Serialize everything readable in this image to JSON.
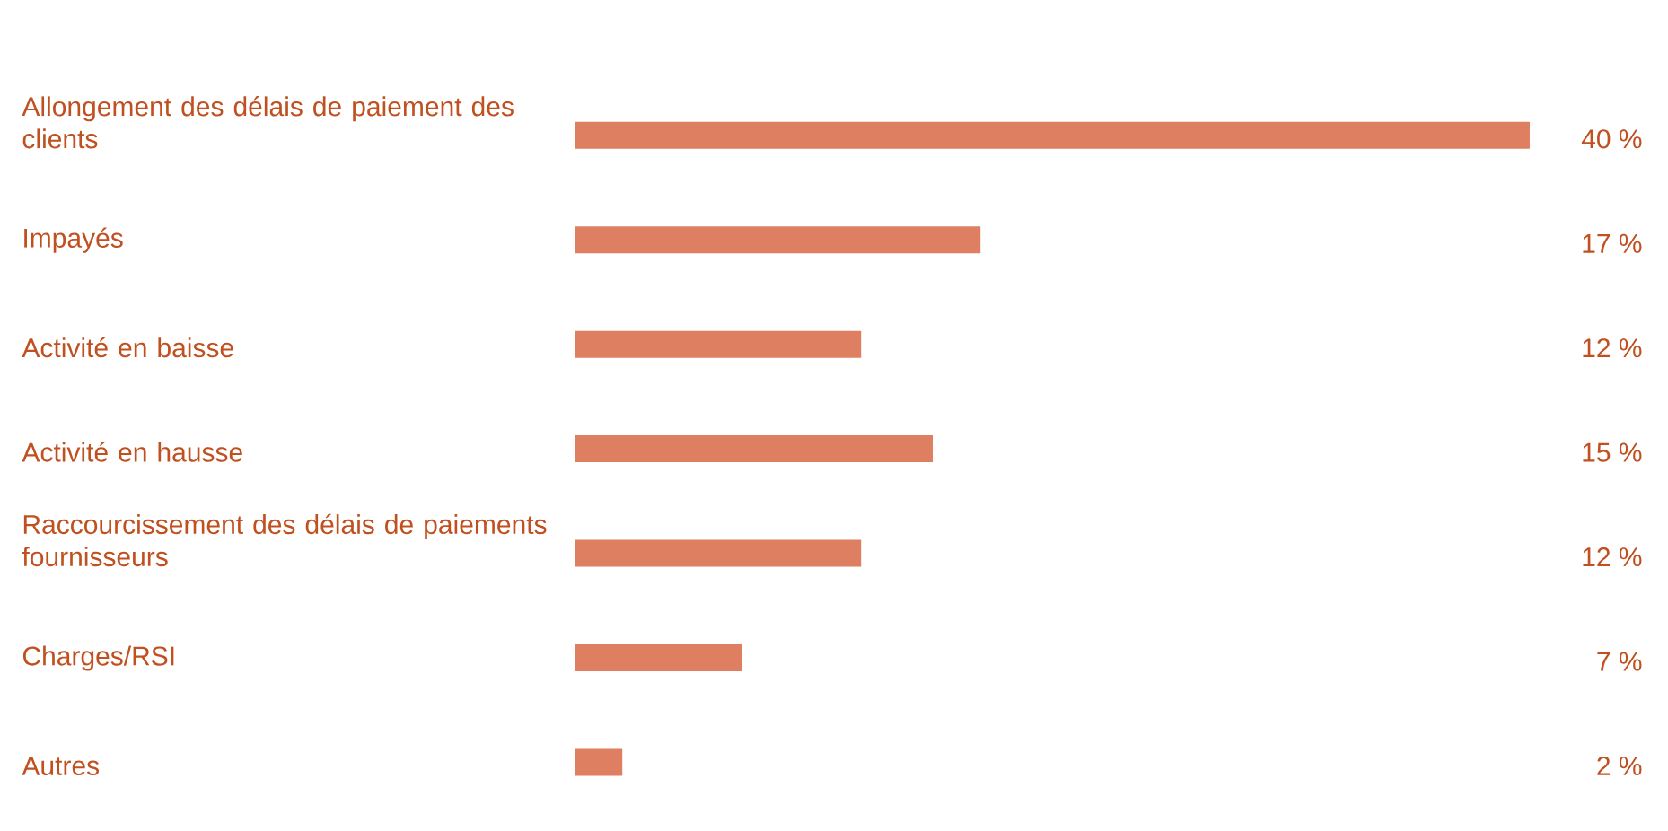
{
  "chart_data": {
    "type": "bar",
    "orientation": "horizontal",
    "categories": [
      "Allongement des délais de paiement des clients",
      "Impayés",
      "Activité en baisse",
      "Activité en hausse",
      "Raccourcissement des délais de paiements fournisseurs",
      "Charges/RSI",
      "Autres"
    ],
    "values": [
      40,
      17,
      12,
      15,
      12,
      7,
      2
    ],
    "value_labels": [
      "40 %",
      "17 %",
      "12 %",
      "15 %",
      "12 %",
      "7 %",
      "2 %"
    ],
    "color": "#de7f62"
  }
}
